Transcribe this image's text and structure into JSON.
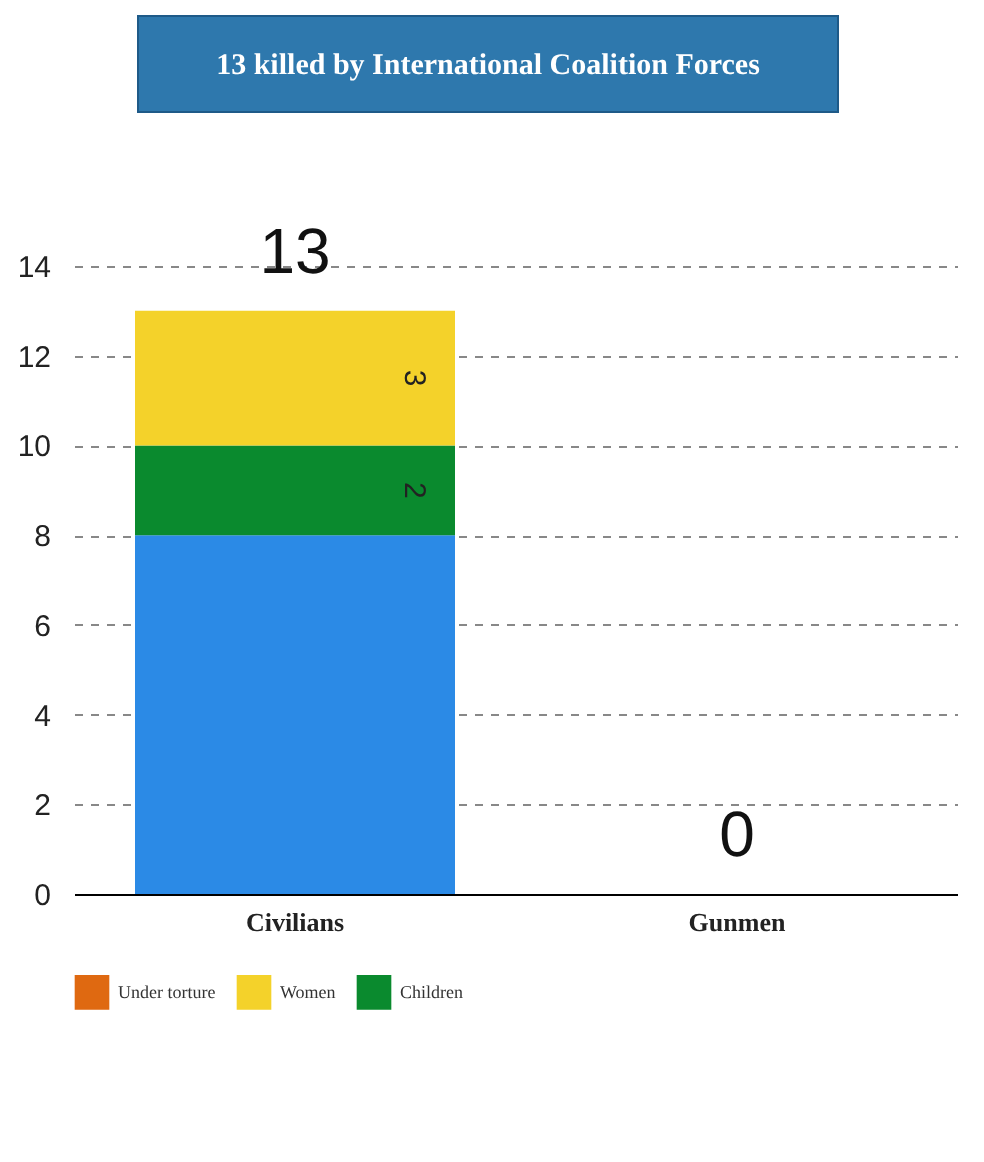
{
  "chart_data": {
    "type": "bar",
    "title": "13 killed by International Coalition Forces",
    "stacked": true,
    "categories": [
      "Civilians",
      "Gunmen"
    ],
    "series": [
      {
        "color": "#2b8ae6",
        "values": [
          8,
          0
        ],
        "value_labels": [
          null,
          null
        ]
      },
      {
        "name": "Children",
        "color": "#0a8a2e",
        "values": [
          2,
          0
        ],
        "value_labels": [
          "2",
          null
        ]
      },
      {
        "name": "Women",
        "color": "#f4d22a",
        "values": [
          3,
          0
        ],
        "value_labels": [
          "3",
          null
        ]
      },
      {
        "name": "Under torture",
        "color": "#df6911",
        "values": [
          0,
          0
        ],
        "value_labels": [
          null,
          null
        ]
      }
    ],
    "totals": [
      "13",
      "0"
    ],
    "ylim": [
      0,
      14
    ],
    "yticks": [
      0,
      2,
      4,
      6,
      8,
      10,
      12,
      14
    ],
    "grid": "y",
    "legend": "bottom left"
  }
}
